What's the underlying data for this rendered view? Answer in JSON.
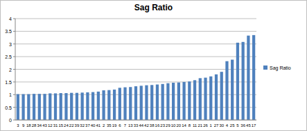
{
  "chart_data": {
    "type": "bar",
    "title": "Sag Ratio",
    "categories": [
      "3",
      "9",
      "18",
      "28",
      "34",
      "43",
      "12",
      "31",
      "15",
      "24",
      "22",
      "39",
      "32",
      "37",
      "40",
      "41",
      "2",
      "35",
      "19",
      "6",
      "7",
      "13",
      "33",
      "44",
      "42",
      "38",
      "16",
      "23",
      "29",
      "10",
      "20",
      "14",
      "8",
      "11",
      "21",
      "26",
      "1",
      "27",
      "30",
      "4",
      "25",
      "5",
      "36",
      "45",
      "17"
    ],
    "series": [
      {
        "name": "Sag Ratio",
        "color": "#4f81bd",
        "values": [
          1.02,
          1.02,
          1.02,
          1.03,
          1.03,
          1.03,
          1.05,
          1.05,
          1.06,
          1.06,
          1.07,
          1.07,
          1.08,
          1.09,
          1.1,
          1.12,
          1.17,
          1.18,
          1.2,
          1.27,
          1.29,
          1.3,
          1.33,
          1.35,
          1.37,
          1.38,
          1.4,
          1.42,
          1.45,
          1.47,
          1.48,
          1.5,
          1.52,
          1.57,
          1.65,
          1.67,
          1.72,
          1.8,
          1.9,
          2.32,
          2.38,
          3.05,
          3.08,
          3.33,
          3.35
        ]
      }
    ],
    "ylim": [
      0,
      4
    ],
    "yticks": [
      0,
      0.5,
      1,
      1.5,
      2,
      2.5,
      3,
      3.5,
      4
    ],
    "grid": true,
    "legend": "right"
  }
}
